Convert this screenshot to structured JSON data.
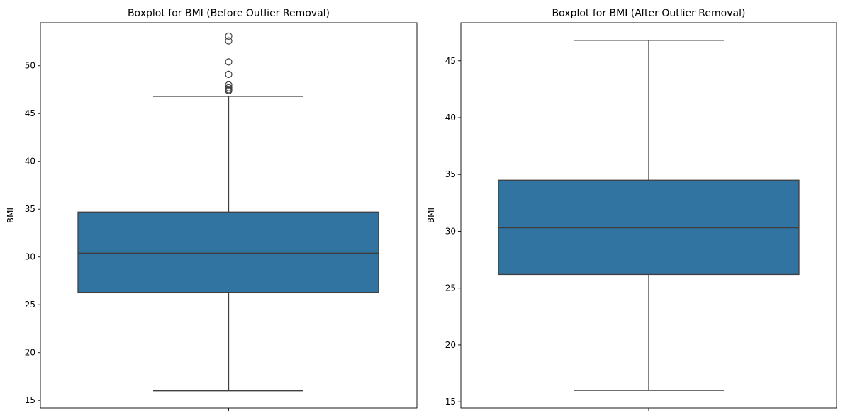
{
  "chart_data": [
    {
      "type": "boxplot",
      "title": "Boxplot for BMI (Before Outlier Removal)",
      "xlabel": "",
      "ylabel": "BMI",
      "ylim": [
        14.2,
        54.5
      ],
      "yticks": [
        15,
        20,
        25,
        30,
        35,
        40,
        45,
        50
      ],
      "grid": false,
      "box": {
        "whisker_low": 16.0,
        "q1": 26.3,
        "median": 30.4,
        "q3": 34.7,
        "whisker_high": 46.8,
        "outliers": [
          53.1,
          52.6,
          50.4,
          49.1,
          48.0,
          47.7,
          47.5,
          47.4
        ],
        "color": "#3274a1"
      }
    },
    {
      "type": "boxplot",
      "title": "Boxplot for BMI (After Outlier Removal)",
      "xlabel": "",
      "ylabel": "BMI",
      "ylim": [
        14.45,
        48.35
      ],
      "yticks": [
        15,
        20,
        25,
        30,
        35,
        40,
        45
      ],
      "grid": false,
      "box": {
        "whisker_low": 16.0,
        "q1": 26.2,
        "median": 30.3,
        "q3": 34.5,
        "whisker_high": 46.8,
        "outliers": [],
        "color": "#3274a1"
      }
    }
  ]
}
